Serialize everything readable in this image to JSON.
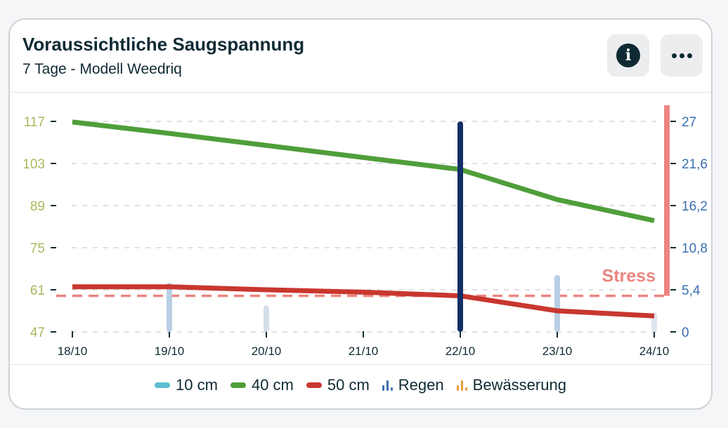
{
  "header": {
    "title": "Voraussichtliche Saugspannung",
    "subtitle": "7 Tage - Modell Weedriq"
  },
  "icons": {
    "info": "info-icon",
    "more": "more-horizontal-icon"
  },
  "legend": [
    {
      "label": "10 cm",
      "color": "#5bbfd1",
      "kind": "line"
    },
    {
      "label": "40 cm",
      "color": "#4f9e3a",
      "kind": "line"
    },
    {
      "label": "50 cm",
      "color": "#c8372f",
      "kind": "line"
    },
    {
      "label": "Regen",
      "color": "#3b6fb0",
      "kind": "bars"
    },
    {
      "label": "Bewässerung",
      "color": "#ef9a3b",
      "kind": "bars"
    }
  ],
  "chart_data": {
    "type": "line",
    "categories": [
      "18/10",
      "19/10",
      "20/10",
      "21/10",
      "22/10",
      "23/10",
      "24/10"
    ],
    "y_left": {
      "ticks": [
        "117",
        "103",
        "89",
        "75",
        "61",
        "47"
      ],
      "range": [
        47,
        117
      ],
      "color": "#a9b85e"
    },
    "y_right": {
      "ticks": [
        "27",
        "21,6",
        "16,2",
        "10,8",
        "5,4",
        "0"
      ],
      "range": [
        0,
        27
      ],
      "color": "#3b6fb0"
    },
    "grid": true,
    "series": [
      {
        "name": "40 cm",
        "axis": "left",
        "color": "#4f9e3a",
        "values": [
          116.8,
          113,
          109,
          105,
          101,
          91,
          84
        ]
      },
      {
        "name": "50 cm",
        "axis": "left",
        "color": "#c8372f",
        "values": [
          62,
          62,
          61,
          60.2,
          59,
          54,
          52.3
        ]
      }
    ],
    "rain": {
      "name": "Regen",
      "axis": "right",
      "values": [
        0,
        6.3,
        3.4,
        0,
        0,
        7.3,
        2.5
      ],
      "colors": [
        "#b8cfe4",
        "#b8cfe4",
        "#d3deeb",
        "#b8cfe4",
        "#b8cfe4",
        "#b8cfe4",
        "#dce5f0"
      ]
    },
    "stress": {
      "label": "Stress",
      "value_left": 59,
      "color": "#ec8580"
    },
    "today_marker": {
      "category": "22/10",
      "color": "#142f66"
    }
  }
}
